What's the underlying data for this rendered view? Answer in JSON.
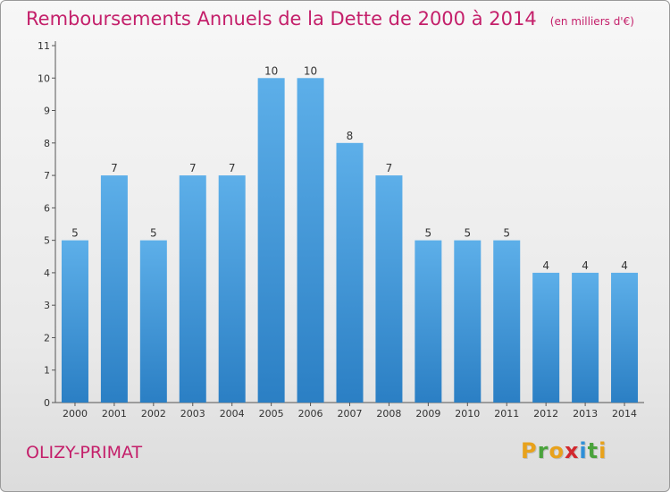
{
  "header": {
    "title": "Remboursements Annuels de la Dette de 2000 à 2014",
    "unit": "(en milliers d'€)"
  },
  "footer": {
    "place": "OLIZY-PRIMAT",
    "logo_text": "Proxiti"
  },
  "colors": {
    "title": "#c41f6a",
    "bar_top": "#5dafe9",
    "bar_bottom": "#2b7fc4",
    "logo_letters": [
      "#e8a21c",
      "#4aa33c",
      "#e8a21c",
      "#d2282e",
      "#2f8fd8",
      "#4aa33c",
      "#e8a21c"
    ]
  },
  "chart_data": {
    "type": "bar",
    "categories": [
      "2000",
      "2001",
      "2002",
      "2003",
      "2004",
      "2005",
      "2006",
      "2007",
      "2008",
      "2009",
      "2010",
      "2011",
      "2012",
      "2013",
      "2014"
    ],
    "values": [
      5,
      7,
      5,
      7,
      7,
      10,
      10,
      8,
      7,
      5,
      5,
      5,
      4,
      4,
      4
    ],
    "data_labels": [
      "5",
      "7",
      "5",
      "7",
      "7",
      "10",
      "10",
      "8",
      "7",
      "5",
      "5",
      "5",
      "4",
      "4",
      "4"
    ],
    "y_ticks": [
      "0",
      "1",
      "2",
      "3",
      "4",
      "5",
      "6",
      "7",
      "8",
      "9",
      "10",
      "11"
    ],
    "ylim": [
      0,
      11
    ],
    "grid": false
  }
}
